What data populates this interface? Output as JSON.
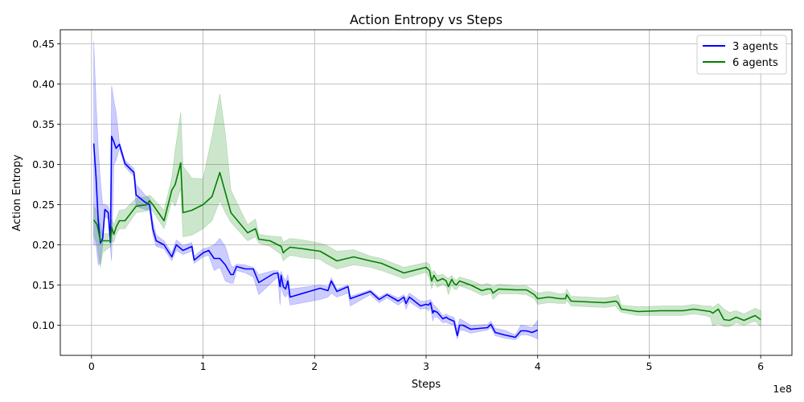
{
  "chart_data": {
    "type": "line",
    "title": "Action Entropy vs Steps",
    "xlabel": "Steps",
    "ylabel": "Action Entropy",
    "x_offset_text": "1e8",
    "xlim": [
      -0.28,
      6.28
    ],
    "ylim": [
      0.0625,
      0.4675
    ],
    "x_ticks": [
      0,
      1,
      2,
      3,
      4,
      5,
      6
    ],
    "y_ticks": [
      0.1,
      0.15,
      0.2,
      0.25,
      0.3,
      0.35,
      0.4,
      0.45
    ],
    "y_tick_labels": [
      "0.10",
      "0.15",
      "0.20",
      "0.25",
      "0.30",
      "0.35",
      "0.40",
      "0.45"
    ],
    "grid": true,
    "legend_position": "top-right",
    "series": [
      {
        "name": "3 agents",
        "color": "#0000ff",
        "band_color": "#0000ff",
        "x": [
          0.02,
          0.04,
          0.06,
          0.08,
          0.1,
          0.12,
          0.15,
          0.17,
          0.18,
          0.2,
          0.22,
          0.25,
          0.3,
          0.38,
          0.4,
          0.48,
          0.52,
          0.55,
          0.58,
          0.65,
          0.72,
          0.76,
          0.82,
          0.9,
          0.92,
          1.0,
          1.05,
          1.1,
          1.15,
          1.2,
          1.25,
          1.27,
          1.3,
          1.38,
          1.45,
          1.5,
          1.63,
          1.67,
          1.69,
          1.7,
          1.72,
          1.74,
          1.76,
          1.78,
          2.05,
          2.12,
          2.15,
          2.2,
          2.3,
          2.32,
          2.5,
          2.58,
          2.65,
          2.75,
          2.8,
          2.82,
          2.85,
          2.95,
          3.0,
          3.02,
          3.04,
          3.06,
          3.07,
          3.1,
          3.15,
          3.18,
          3.2,
          3.25,
          3.28,
          3.3,
          3.33,
          3.4,
          3.55,
          3.58,
          3.62,
          3.7,
          3.8,
          3.85,
          3.9,
          3.95,
          4.0
        ],
        "y": [
          0.326,
          0.285,
          0.23,
          0.202,
          0.208,
          0.244,
          0.24,
          0.203,
          0.335,
          0.328,
          0.32,
          0.325,
          0.301,
          0.29,
          0.262,
          0.253,
          0.25,
          0.22,
          0.205,
          0.2,
          0.185,
          0.2,
          0.193,
          0.198,
          0.181,
          0.19,
          0.193,
          0.183,
          0.183,
          0.175,
          0.163,
          0.163,
          0.173,
          0.17,
          0.17,
          0.153,
          0.164,
          0.165,
          0.148,
          0.162,
          0.148,
          0.145,
          0.155,
          0.135,
          0.146,
          0.143,
          0.155,
          0.142,
          0.148,
          0.133,
          0.142,
          0.132,
          0.138,
          0.13,
          0.135,
          0.127,
          0.135,
          0.124,
          0.126,
          0.125,
          0.128,
          0.115,
          0.118,
          0.116,
          0.108,
          0.11,
          0.108,
          0.105,
          0.087,
          0.1,
          0.1,
          0.095,
          0.097,
          0.101,
          0.091,
          0.088,
          0.085,
          0.093,
          0.093,
          0.091,
          0.094
        ],
        "upper": [
          0.453,
          0.38,
          0.32,
          0.28,
          0.25,
          0.25,
          0.248,
          0.24,
          0.398,
          0.38,
          0.365,
          0.328,
          0.305,
          0.295,
          0.275,
          0.262,
          0.258,
          0.23,
          0.212,
          0.205,
          0.19,
          0.206,
          0.199,
          0.203,
          0.186,
          0.195,
          0.197,
          0.2,
          0.208,
          0.198,
          0.175,
          0.172,
          0.176,
          0.175,
          0.172,
          0.163,
          0.168,
          0.168,
          0.162,
          0.167,
          0.16,
          0.155,
          0.163,
          0.145,
          0.15,
          0.148,
          0.159,
          0.145,
          0.15,
          0.136,
          0.144,
          0.135,
          0.14,
          0.134,
          0.138,
          0.133,
          0.14,
          0.13,
          0.13,
          0.131,
          0.132,
          0.127,
          0.125,
          0.121,
          0.112,
          0.114,
          0.112,
          0.11,
          0.095,
          0.108,
          0.106,
          0.1,
          0.101,
          0.105,
          0.096,
          0.094,
          0.088,
          0.1,
          0.099,
          0.097,
          0.106
        ],
        "lower": [
          0.2,
          0.2,
          0.175,
          0.178,
          0.2,
          0.236,
          0.232,
          0.195,
          0.18,
          0.3,
          0.305,
          0.32,
          0.297,
          0.285,
          0.248,
          0.244,
          0.243,
          0.212,
          0.198,
          0.195,
          0.18,
          0.193,
          0.188,
          0.192,
          0.177,
          0.185,
          0.187,
          0.168,
          0.172,
          0.155,
          0.152,
          0.152,
          0.168,
          0.165,
          0.16,
          0.138,
          0.155,
          0.16,
          0.125,
          0.15,
          0.138,
          0.135,
          0.14,
          0.125,
          0.132,
          0.135,
          0.14,
          0.135,
          0.14,
          0.124,
          0.138,
          0.128,
          0.134,
          0.125,
          0.13,
          0.12,
          0.129,
          0.12,
          0.121,
          0.118,
          0.122,
          0.105,
          0.11,
          0.11,
          0.103,
          0.104,
          0.102,
          0.1,
          0.083,
          0.093,
          0.094,
          0.09,
          0.094,
          0.097,
          0.087,
          0.084,
          0.082,
          0.088,
          0.088,
          0.086,
          0.083
        ]
      },
      {
        "name": "6 agents",
        "color": "#008000",
        "band_color": "#008000",
        "x": [
          0.02,
          0.05,
          0.08,
          0.1,
          0.15,
          0.17,
          0.18,
          0.2,
          0.22,
          0.25,
          0.3,
          0.4,
          0.5,
          0.52,
          0.55,
          0.65,
          0.72,
          0.75,
          0.8,
          0.82,
          0.9,
          1.0,
          1.08,
          1.15,
          1.2,
          1.25,
          1.4,
          1.47,
          1.5,
          1.6,
          1.7,
          1.72,
          1.74,
          1.78,
          1.9,
          2.05,
          2.1,
          2.2,
          2.35,
          2.5,
          2.6,
          2.8,
          3.0,
          3.03,
          3.05,
          3.07,
          3.1,
          3.15,
          3.18,
          3.2,
          3.23,
          3.25,
          3.27,
          3.3,
          3.4,
          3.5,
          3.55,
          3.58,
          3.6,
          3.65,
          3.8,
          3.9,
          3.97,
          4.0,
          4.1,
          4.2,
          4.25,
          4.26,
          4.3,
          4.6,
          4.7,
          4.72,
          4.75,
          4.9,
          5.1,
          5.3,
          5.4,
          5.5,
          5.55,
          5.57,
          5.62,
          5.67,
          5.72,
          5.78,
          5.85,
          5.95,
          6.0
        ],
        "y": [
          0.231,
          0.225,
          0.205,
          0.205,
          0.205,
          0.205,
          0.222,
          0.213,
          0.222,
          0.23,
          0.23,
          0.248,
          0.25,
          0.255,
          0.25,
          0.23,
          0.268,
          0.275,
          0.302,
          0.24,
          0.243,
          0.25,
          0.26,
          0.29,
          0.265,
          0.24,
          0.215,
          0.22,
          0.207,
          0.205,
          0.198,
          0.19,
          0.193,
          0.197,
          0.195,
          0.192,
          0.188,
          0.18,
          0.185,
          0.18,
          0.177,
          0.165,
          0.172,
          0.168,
          0.155,
          0.162,
          0.155,
          0.158,
          0.155,
          0.148,
          0.157,
          0.152,
          0.15,
          0.155,
          0.15,
          0.143,
          0.145,
          0.145,
          0.14,
          0.145,
          0.144,
          0.144,
          0.138,
          0.133,
          0.135,
          0.133,
          0.133,
          0.138,
          0.13,
          0.128,
          0.13,
          0.128,
          0.12,
          0.117,
          0.118,
          0.118,
          0.12,
          0.118,
          0.117,
          0.115,
          0.12,
          0.107,
          0.106,
          0.11,
          0.106,
          0.112,
          0.107
        ],
        "upper": [
          0.248,
          0.242,
          0.225,
          0.214,
          0.214,
          0.212,
          0.232,
          0.225,
          0.232,
          0.243,
          0.244,
          0.258,
          0.26,
          0.262,
          0.258,
          0.243,
          0.283,
          0.318,
          0.365,
          0.298,
          0.283,
          0.282,
          0.335,
          0.388,
          0.338,
          0.268,
          0.225,
          0.232,
          0.213,
          0.211,
          0.21,
          0.203,
          0.205,
          0.208,
          0.206,
          0.202,
          0.2,
          0.192,
          0.194,
          0.186,
          0.183,
          0.172,
          0.178,
          0.176,
          0.165,
          0.168,
          0.162,
          0.163,
          0.16,
          0.158,
          0.162,
          0.158,
          0.156,
          0.16,
          0.156,
          0.15,
          0.152,
          0.15,
          0.148,
          0.151,
          0.149,
          0.149,
          0.143,
          0.14,
          0.142,
          0.139,
          0.14,
          0.145,
          0.136,
          0.134,
          0.136,
          0.138,
          0.125,
          0.123,
          0.124,
          0.124,
          0.126,
          0.124,
          0.124,
          0.122,
          0.127,
          0.12,
          0.116,
          0.118,
          0.114,
          0.121,
          0.118
        ],
        "lower": [
          0.212,
          0.2,
          0.172,
          0.19,
          0.196,
          0.197,
          0.205,
          0.203,
          0.213,
          0.22,
          0.22,
          0.24,
          0.242,
          0.245,
          0.242,
          0.22,
          0.255,
          0.248,
          0.27,
          0.21,
          0.212,
          0.22,
          0.23,
          0.255,
          0.24,
          0.228,
          0.205,
          0.21,
          0.202,
          0.198,
          0.188,
          0.18,
          0.183,
          0.187,
          0.184,
          0.182,
          0.177,
          0.17,
          0.175,
          0.172,
          0.168,
          0.158,
          0.166,
          0.158,
          0.145,
          0.155,
          0.147,
          0.151,
          0.148,
          0.138,
          0.15,
          0.145,
          0.144,
          0.149,
          0.144,
          0.137,
          0.138,
          0.14,
          0.132,
          0.139,
          0.139,
          0.138,
          0.133,
          0.126,
          0.128,
          0.127,
          0.127,
          0.131,
          0.124,
          0.122,
          0.124,
          0.12,
          0.116,
          0.112,
          0.112,
          0.112,
          0.114,
          0.112,
          0.11,
          0.099,
          0.102,
          0.098,
          0.098,
          0.103,
          0.1,
          0.105,
          0.098
        ]
      }
    ]
  }
}
